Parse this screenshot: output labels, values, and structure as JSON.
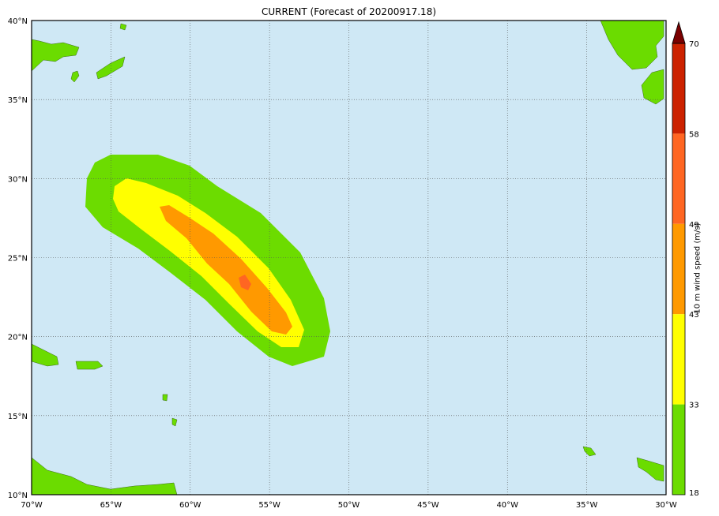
{
  "title": "CURRENT (Forecast of 20200917.18)",
  "map": {
    "lon_range": [
      -70,
      -30
    ],
    "lat_range": [
      10,
      40
    ],
    "x_ticks": [
      "70°W",
      "65°W",
      "60°W",
      "55°W",
      "50°W",
      "45°W",
      "40°W",
      "35°W",
      "30°W"
    ],
    "y_ticks": [
      "40°N",
      "35°N",
      "30°N",
      "25°N",
      "20°N",
      "15°N",
      "10°N"
    ],
    "grid": true,
    "colors": {
      "ocean": "#cfe8f5",
      "land": "#6bdc00",
      "grid": "#555555"
    }
  },
  "colorbar": {
    "label": "10 m wind speed (m/s)",
    "ticks": [
      "70",
      "58",
      "49",
      "43",
      "33",
      "18"
    ],
    "levels": [
      {
        "from": 58,
        "to": 70,
        "color": "#cc2200"
      },
      {
        "from": 49,
        "to": 58,
        "color": "#ff6622"
      },
      {
        "from": 43,
        "to": 49,
        "color": "#ff9900"
      },
      {
        "from": 33,
        "to": 43,
        "color": "#ffff00"
      },
      {
        "from": 18,
        "to": 33,
        "color": "#6cdc00"
      }
    ],
    "extend_color": "#7a0000"
  }
}
